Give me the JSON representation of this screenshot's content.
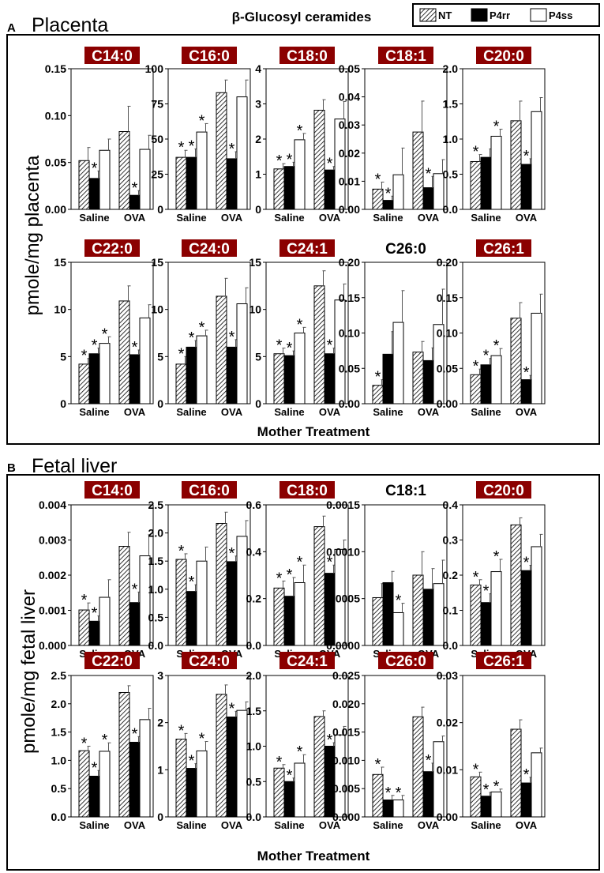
{
  "figure": {
    "title": "β-Glucosyl ceramides",
    "legend": [
      "NT",
      "P4rr",
      "P4ss"
    ],
    "colors": {
      "dark_red": "#8b0000",
      "bar_black": "#000000",
      "bar_white": "#ffffff"
    }
  },
  "chart_data": [
    {
      "panel_letter": "A",
      "panel_title": "Placenta",
      "type": "bar",
      "ylabel": "pmole/mg placenta",
      "xlabel": "Mother Treatment",
      "groups": [
        "Saline",
        "OVA"
      ],
      "series_names": [
        "NT",
        "P4rr",
        "P4ss"
      ],
      "subplots": [
        {
          "title": "C14:0",
          "highlighted": true,
          "ylim": [
            0,
            0.15
          ],
          "yticks": [
            "0.00",
            "0.05",
            "0.10",
            "0.15"
          ],
          "values": [
            [
              0.052,
              0.033,
              0.063
            ],
            [
              0.083,
              0.015,
              0.064
            ]
          ],
          "errors": [
            [
              0.014,
              0.008,
              0.012
            ],
            [
              0.027,
              0.005,
              0.015
            ]
          ],
          "sig": [
            [
              false,
              true,
              false
            ],
            [
              false,
              true,
              false
            ]
          ]
        },
        {
          "title": "C16:0",
          "highlighted": true,
          "ylim": [
            0,
            100
          ],
          "yticks": [
            "0",
            "25",
            "50",
            "75",
            "100"
          ],
          "values": [
            [
              37,
              37,
              55
            ],
            [
              83,
              36,
              80
            ]
          ],
          "errors": [
            [
              5,
              6,
              6
            ],
            [
              9,
              5,
              12
            ]
          ],
          "sig": [
            [
              true,
              true,
              true
            ],
            [
              false,
              true,
              false
            ]
          ]
        },
        {
          "title": "C18:0",
          "highlighted": true,
          "ylim": [
            0,
            4
          ],
          "yticks": [
            "0",
            "1",
            "2",
            "3",
            "4"
          ],
          "values": [
            [
              1.15,
              1.22,
              1.98
            ],
            [
              2.82,
              1.12,
              2.57
            ]
          ],
          "errors": [
            [
              0.15,
              0.12,
              0.18
            ],
            [
              0.3,
              0.1,
              0.5
            ]
          ],
          "sig": [
            [
              true,
              true,
              true
            ],
            [
              false,
              true,
              false
            ]
          ]
        },
        {
          "title": "C18:1",
          "highlighted": true,
          "ylim": [
            0,
            0.05
          ],
          "yticks": [
            "0.00",
            "0.01",
            "0.02",
            "0.03",
            "0.04",
            "0.05"
          ],
          "values": [
            [
              0.0072,
              0.0032,
              0.0123
            ],
            [
              0.0275,
              0.0077,
              0.0127
            ]
          ],
          "errors": [
            [
              0.0025,
              0.0015,
              0.0095
            ],
            [
              0.011,
              0.004,
              0.005
            ]
          ],
          "sig": [
            [
              true,
              true,
              false
            ],
            [
              false,
              true,
              false
            ]
          ]
        },
        {
          "title": "C20:0",
          "highlighted": true,
          "ylim": [
            0,
            2.0
          ],
          "yticks": [
            "0.0",
            "0.5",
            "1.0",
            "1.5",
            "2.0"
          ],
          "values": [
            [
              0.68,
              0.74,
              1.04
            ],
            [
              1.26,
              0.64,
              1.39
            ]
          ],
          "errors": [
            [
              0.1,
              0.12,
              0.1
            ],
            [
              0.28,
              0.08,
              0.2
            ]
          ],
          "sig": [
            [
              true,
              false,
              true
            ],
            [
              false,
              true,
              false
            ]
          ]
        },
        {
          "title": "C22:0",
          "highlighted": true,
          "ylim": [
            0,
            15
          ],
          "yticks": [
            "0",
            "5",
            "10",
            "15"
          ],
          "values": [
            [
              4.2,
              5.3,
              6.4
            ],
            [
              10.9,
              5.2,
              9.1
            ]
          ],
          "errors": [
            [
              0.6,
              0.6,
              0.7
            ],
            [
              1.6,
              0.5,
              1.4
            ]
          ],
          "sig": [
            [
              true,
              true,
              true
            ],
            [
              false,
              true,
              false
            ]
          ]
        },
        {
          "title": "C24:0",
          "highlighted": true,
          "ylim": [
            0,
            15
          ],
          "yticks": [
            "0",
            "5",
            "10",
            "15"
          ],
          "values": [
            [
              4.2,
              6.0,
              7.2
            ],
            [
              11.4,
              6.0,
              10.6
            ]
          ],
          "errors": [
            [
              0.8,
              0.7,
              0.6
            ],
            [
              1.9,
              0.8,
              1.7
            ]
          ],
          "sig": [
            [
              true,
              true,
              true
            ],
            [
              false,
              true,
              false
            ]
          ]
        },
        {
          "title": "C24:1",
          "highlighted": true,
          "ylim": [
            0,
            15
          ],
          "yticks": [
            "0",
            "5",
            "10",
            "15"
          ],
          "values": [
            [
              5.3,
              5.1,
              7.5
            ],
            [
              12.5,
              5.3,
              11.0
            ]
          ],
          "errors": [
            [
              0.6,
              0.5,
              0.6
            ],
            [
              1.6,
              0.6,
              1.7
            ]
          ],
          "sig": [
            [
              true,
              true,
              true
            ],
            [
              false,
              true,
              false
            ]
          ]
        },
        {
          "title": "C26:0",
          "highlighted": false,
          "ylim": [
            0,
            0.2
          ],
          "yticks": [
            "0.00",
            "0.05",
            "0.10",
            "0.15",
            "0.20"
          ],
          "values": [
            [
              0.026,
              0.07,
              0.115
            ],
            [
              0.073,
              0.061,
              0.112
            ]
          ],
          "errors": [
            [
              0.008,
              0.032,
              0.045
            ],
            [
              0.015,
              0.018,
              0.05
            ]
          ],
          "sig": [
            [
              true,
              false,
              false
            ],
            [
              false,
              false,
              false
            ]
          ]
        },
        {
          "title": "C26:1",
          "highlighted": true,
          "ylim": [
            0,
            0.2
          ],
          "yticks": [
            "0.00",
            "0.05",
            "0.10",
            "0.15",
            "0.20"
          ],
          "values": [
            [
              0.041,
              0.055,
              0.068
            ],
            [
              0.121,
              0.034,
              0.128
            ]
          ],
          "errors": [
            [
              0.008,
              0.009,
              0.01
            ],
            [
              0.022,
              0.006,
              0.027
            ]
          ],
          "sig": [
            [
              true,
              true,
              true
            ],
            [
              false,
              true,
              false
            ]
          ]
        }
      ]
    },
    {
      "panel_letter": "B",
      "panel_title": "Fetal liver",
      "type": "bar",
      "ylabel": "pmole/mg fetal liver",
      "xlabel": "Mother Treatment",
      "groups": [
        "Saline",
        "OVA"
      ],
      "series_names": [
        "NT",
        "P4rr",
        "P4ss"
      ],
      "subplots": [
        {
          "title": "C14:0",
          "highlighted": true,
          "ylim": [
            0,
            0.004
          ],
          "yticks": [
            "0.000",
            "0.001",
            "0.002",
            "0.003",
            "0.004"
          ],
          "values": [
            [
              0.00101,
              0.00069,
              0.00137
            ],
            [
              0.00282,
              0.00122,
              0.00255
            ]
          ],
          "errors": [
            [
              0.0002,
              0.00015,
              0.0005
            ],
            [
              0.0004,
              0.0003,
              0.0006
            ]
          ],
          "sig": [
            [
              true,
              true,
              false
            ],
            [
              false,
              true,
              false
            ]
          ]
        },
        {
          "title": "C16:0",
          "highlighted": true,
          "ylim": [
            0,
            2.5
          ],
          "yticks": [
            "0.0",
            "0.5",
            "1.0",
            "1.5",
            "2.0",
            "2.5"
          ],
          "values": [
            [
              1.53,
              0.96,
              1.5
            ],
            [
              2.17,
              1.49,
              1.94
            ]
          ],
          "errors": [
            [
              0.1,
              0.12,
              0.25
            ],
            [
              0.2,
              0.1,
              0.28
            ]
          ],
          "sig": [
            [
              true,
              true,
              false
            ],
            [
              false,
              true,
              false
            ]
          ]
        },
        {
          "title": "C18:0",
          "highlighted": true,
          "ylim": [
            0,
            0.6
          ],
          "yticks": [
            "0.0",
            "0.2",
            "0.4",
            "0.6"
          ],
          "values": [
            [
              0.245,
              0.21,
              0.268
            ],
            [
              0.507,
              0.308,
              0.41
            ]
          ],
          "errors": [
            [
              0.03,
              0.08,
              0.075
            ],
            [
              0.045,
              0.035,
              0.04
            ]
          ],
          "sig": [
            [
              true,
              true,
              true
            ],
            [
              false,
              true,
              false
            ]
          ]
        },
        {
          "title": "C18:1",
          "highlighted": false,
          "ylim": [
            0,
            0.0015
          ],
          "yticks": [
            "0.0000",
            "0.0005",
            "0.0010",
            "0.0015"
          ],
          "values": [
            [
              0.00051,
              0.00067,
              0.00035
            ],
            [
              0.00075,
              0.0006,
              0.00066
            ]
          ],
          "errors": [
            [
              0.00015,
              0.00012,
              0.0001
            ],
            [
              0.00025,
              0.00022,
              0.00025
            ]
          ],
          "sig": [
            [
              false,
              false,
              true
            ],
            [
              false,
              false,
              false
            ]
          ]
        },
        {
          "title": "C20:0",
          "highlighted": true,
          "ylim": [
            0,
            0.4
          ],
          "yticks": [
            "0.0",
            "0.1",
            "0.2",
            "0.3",
            "0.4"
          ],
          "values": [
            [
              0.172,
              0.122,
              0.21
            ],
            [
              0.343,
              0.213,
              0.281
            ]
          ],
          "errors": [
            [
              0.015,
              0.025,
              0.035
            ],
            [
              0.02,
              0.015,
              0.035
            ]
          ],
          "sig": [
            [
              true,
              true,
              true
            ],
            [
              false,
              true,
              false
            ]
          ]
        },
        {
          "title": "C22:0",
          "highlighted": true,
          "ylim": [
            0,
            2.5
          ],
          "yticks": [
            "0.0",
            "0.5",
            "1.0",
            "1.5",
            "2.0",
            "2.5"
          ],
          "values": [
            [
              1.17,
              0.72,
              1.16
            ],
            [
              2.2,
              1.32,
              1.72
            ]
          ],
          "errors": [
            [
              0.08,
              0.1,
              0.15
            ],
            [
              0.12,
              0.1,
              0.2
            ]
          ],
          "sig": [
            [
              true,
              true,
              true
            ],
            [
              false,
              true,
              false
            ]
          ]
        },
        {
          "title": "C24:0",
          "highlighted": true,
          "ylim": [
            0,
            3
          ],
          "yticks": [
            "0",
            "1",
            "2",
            "3"
          ],
          "values": [
            [
              1.65,
              1.03,
              1.4
            ],
            [
              2.6,
              2.12,
              2.26
            ]
          ],
          "errors": [
            [
              0.12,
              0.1,
              0.2
            ],
            [
              0.2,
              0.12,
              0.18
            ]
          ],
          "sig": [
            [
              true,
              true,
              true
            ],
            [
              false,
              true,
              false
            ]
          ]
        },
        {
          "title": "C24:1",
          "highlighted": true,
          "ylim": [
            0,
            2.0
          ],
          "yticks": [
            "0.0",
            "0.5",
            "1.0",
            "1.5",
            "2.0"
          ],
          "values": [
            [
              0.69,
              0.5,
              0.76
            ],
            [
              1.42,
              1.0,
              1.16
            ]
          ],
          "errors": [
            [
              0.05,
              0.05,
              0.12
            ],
            [
              0.08,
              0.05,
              0.12
            ]
          ],
          "sig": [
            [
              true,
              true,
              true
            ],
            [
              false,
              true,
              false
            ]
          ]
        },
        {
          "title": "C26:0",
          "highlighted": true,
          "ylim": [
            0,
            0.025
          ],
          "yticks": [
            "0.000",
            "0.005",
            "0.010",
            "0.015",
            "0.020",
            "0.025"
          ],
          "values": [
            [
              0.0075,
              0.003,
              0.003
            ],
            [
              0.0177,
              0.008,
              0.0133
            ]
          ],
          "errors": [
            [
              0.0013,
              0.0008,
              0.0008
            ],
            [
              0.0017,
              0.0015,
              0.001
            ]
          ],
          "sig": [
            [
              true,
              true,
              true
            ],
            [
              false,
              true,
              false
            ]
          ]
        },
        {
          "title": "C26:1",
          "highlighted": true,
          "ylim": [
            0,
            0.03
          ],
          "yticks": [
            "0.00",
            "0.01",
            "0.02",
            "0.03"
          ],
          "values": [
            [
              0.0085,
              0.0044,
              0.0053
            ],
            [
              0.0186,
              0.0072,
              0.0136
            ]
          ],
          "errors": [
            [
              0.001,
              0.0008,
              0.0006
            ],
            [
              0.002,
              0.0012,
              0.001
            ]
          ],
          "sig": [
            [
              true,
              true,
              true
            ],
            [
              false,
              true,
              false
            ]
          ]
        }
      ]
    }
  ]
}
